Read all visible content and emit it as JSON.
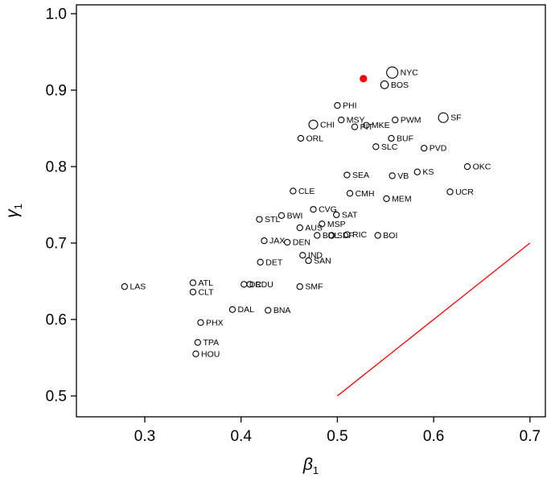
{
  "figure": {
    "background": "#ffffff",
    "accent_color": "#ff0000",
    "point_color": "#000000"
  },
  "chart_data": {
    "type": "scatter",
    "title": "",
    "xlabel": "β1",
    "ylabel": "γ1",
    "x_symbol": "β",
    "x_sub": "1",
    "y_symbol": "γ",
    "y_sub": "1",
    "xlim": [
      0.229,
      0.716
    ],
    "ylim": [
      0.4727,
      1.0116
    ],
    "x_ticks": [
      0.3,
      0.4,
      0.5,
      0.6,
      0.7
    ],
    "x_tick_labels": [
      "0.3",
      "0.4",
      "0.5",
      "0.6",
      "0.7"
    ],
    "y_ticks": [
      0.5,
      0.6,
      0.7,
      0.8,
      0.9,
      1.0
    ],
    "y_tick_labels": [
      "0.5",
      "0.6",
      "0.7",
      "0.8",
      "0.9",
      "1.0"
    ],
    "grid": false,
    "legend": "none",
    "points": [
      {
        "label": "NYC",
        "x": 0.557,
        "y": 0.923,
        "r": 7.0
      },
      {
        "label": "BOS",
        "x": 0.549,
        "y": 0.907,
        "r": 4.8
      },
      {
        "label": "PHI",
        "x": 0.5,
        "y": 0.88,
        "r": 3.6
      },
      {
        "label": "CHI",
        "x": 0.475,
        "y": 0.855,
        "r": 5.5
      },
      {
        "label": "MSY",
        "x": 0.504,
        "y": 0.861,
        "r": 3.6
      },
      {
        "label": "PIT",
        "x": 0.518,
        "y": 0.852,
        "r": 3.6
      },
      {
        "label": "MKE",
        "x": 0.53,
        "y": 0.854,
        "r": 3.6
      },
      {
        "label": "PWM",
        "x": 0.56,
        "y": 0.861,
        "r": 3.6
      },
      {
        "label": "SF",
        "x": 0.61,
        "y": 0.864,
        "r": 6.0
      },
      {
        "label": "BUF",
        "x": 0.556,
        "y": 0.837,
        "r": 3.6
      },
      {
        "label": "SLC",
        "x": 0.54,
        "y": 0.826,
        "r": 3.6
      },
      {
        "label": "ORL",
        "x": 0.462,
        "y": 0.837,
        "r": 3.6
      },
      {
        "label": "PVD",
        "x": 0.59,
        "y": 0.824,
        "r": 3.6
      },
      {
        "label": "OKC",
        "x": 0.635,
        "y": 0.8,
        "r": 3.6
      },
      {
        "label": "SEA",
        "x": 0.51,
        "y": 0.789,
        "r": 3.6
      },
      {
        "label": "VB",
        "x": 0.557,
        "y": 0.788,
        "r": 3.6
      },
      {
        "label": "KS",
        "x": 0.583,
        "y": 0.793,
        "r": 3.6
      },
      {
        "label": "CLE",
        "x": 0.454,
        "y": 0.768,
        "r": 3.6
      },
      {
        "label": "CMH",
        "x": 0.513,
        "y": 0.765,
        "r": 3.6
      },
      {
        "label": "MEM",
        "x": 0.551,
        "y": 0.758,
        "r": 3.6
      },
      {
        "label": "UCR",
        "x": 0.617,
        "y": 0.767,
        "r": 3.6
      },
      {
        "label": "CVG",
        "x": 0.475,
        "y": 0.744,
        "r": 3.6
      },
      {
        "label": "SAT",
        "x": 0.499,
        "y": 0.737,
        "r": 3.6
      },
      {
        "label": "BWI",
        "x": 0.442,
        "y": 0.736,
        "r": 3.6
      },
      {
        "label": "STL",
        "x": 0.419,
        "y": 0.731,
        "r": 3.6
      },
      {
        "label": "MSP",
        "x": 0.484,
        "y": 0.725,
        "r": 3.6
      },
      {
        "label": "AUS",
        "x": 0.461,
        "y": 0.72,
        "r": 3.6
      },
      {
        "label": "BDL",
        "x": 0.479,
        "y": 0.71,
        "r": 3.6
      },
      {
        "label": "SDF",
        "x": 0.494,
        "y": 0.71,
        "r": 3.6
      },
      {
        "label": "RIC",
        "x": 0.51,
        "y": 0.711,
        "r": 3.6
      },
      {
        "label": "BOI",
        "x": 0.542,
        "y": 0.71,
        "r": 3.6
      },
      {
        "label": "JAX",
        "x": 0.424,
        "y": 0.703,
        "r": 3.6
      },
      {
        "label": "DEN",
        "x": 0.448,
        "y": 0.701,
        "r": 3.6
      },
      {
        "label": "IND",
        "x": 0.464,
        "y": 0.684,
        "r": 3.6
      },
      {
        "label": "SAN",
        "x": 0.47,
        "y": 0.677,
        "r": 3.6
      },
      {
        "label": "DET",
        "x": 0.42,
        "y": 0.675,
        "r": 3.6
      },
      {
        "label": "ATL",
        "x": 0.35,
        "y": 0.648,
        "r": 3.6
      },
      {
        "label": "LAS",
        "x": 0.279,
        "y": 0.643,
        "r": 3.6
      },
      {
        "label": "DC",
        "x": 0.403,
        "y": 0.646,
        "r": 3.6
      },
      {
        "label": "RDU",
        "x": 0.409,
        "y": 0.646,
        "r": 3.6
      },
      {
        "label": "CLT",
        "x": 0.35,
        "y": 0.636,
        "r": 3.6
      },
      {
        "label": "SMF",
        "x": 0.461,
        "y": 0.643,
        "r": 3.6
      },
      {
        "label": "DAL",
        "x": 0.391,
        "y": 0.613,
        "r": 3.6
      },
      {
        "label": "BNA",
        "x": 0.428,
        "y": 0.612,
        "r": 3.6
      },
      {
        "label": "PHX",
        "x": 0.358,
        "y": 0.596,
        "r": 3.6
      },
      {
        "label": "TPA",
        "x": 0.355,
        "y": 0.57,
        "r": 3.6
      },
      {
        "label": "HOU",
        "x": 0.353,
        "y": 0.555,
        "r": 3.6
      }
    ],
    "highlight_point": {
      "x": 0.527,
      "y": 0.915,
      "r": 4.6,
      "color": "#ff0000",
      "filled": true
    },
    "reference_line": {
      "x1": 0.5,
      "y1": 0.5,
      "x2": 0.7,
      "y2": 0.7,
      "color": "#ff0000"
    }
  }
}
